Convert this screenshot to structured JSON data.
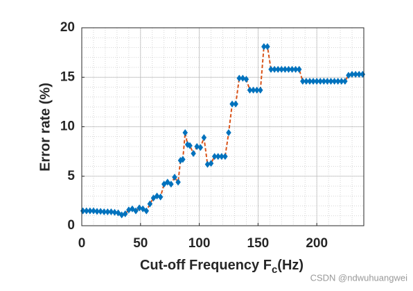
{
  "chart_data": {
    "type": "line",
    "xlabel": [
      "Cut-off Frequency F",
      "c",
      "(Hz)"
    ],
    "ylabel": "Error rate (%)",
    "watermark": "CSDN @ndwuhuangwei",
    "xlim": [
      0,
      240
    ],
    "xticks": [
      0,
      50,
      100,
      150,
      200
    ],
    "ylim": [
      0,
      20
    ],
    "yticks": [
      0,
      5,
      10,
      15,
      20
    ],
    "grid": true,
    "minor_grid": true,
    "x": [
      1,
      4,
      7,
      10,
      13,
      16,
      19,
      22,
      25,
      28,
      31,
      34,
      37,
      40,
      43,
      46,
      49,
      52,
      55,
      58,
      61,
      64,
      67,
      70,
      73,
      76,
      79,
      82,
      84,
      86,
      88,
      90,
      92,
      95,
      98,
      101,
      104,
      107,
      110,
      113,
      116,
      119,
      122,
      125,
      128,
      131,
      134,
      137,
      140,
      143,
      146,
      149,
      152,
      155,
      158,
      161,
      164,
      167,
      170,
      173,
      176,
      179,
      182,
      185,
      188,
      191,
      194,
      197,
      200,
      203,
      206,
      209,
      212,
      215,
      218,
      221,
      224,
      227,
      230,
      233,
      236,
      239
    ],
    "series": [
      {
        "name": "error",
        "color": "#0072bd",
        "line_color": "#d95319",
        "values": [
          1.5,
          1.5,
          1.5,
          1.5,
          1.45,
          1.45,
          1.4,
          1.4,
          1.4,
          1.35,
          1.3,
          1.1,
          1.2,
          1.6,
          1.7,
          1.5,
          1.8,
          1.7,
          1.5,
          2.2,
          2.8,
          3.0,
          2.9,
          4.2,
          4.4,
          4.2,
          4.9,
          4.4,
          6.6,
          6.7,
          9.4,
          8.2,
          8.1,
          7.3,
          8.0,
          7.9,
          8.9,
          6.2,
          6.3,
          7.0,
          7.0,
          7.0,
          7.0,
          9.4,
          12.3,
          12.3,
          14.9,
          14.9,
          14.8,
          13.7,
          13.7,
          13.7,
          13.7,
          18.1,
          18.1,
          15.8,
          15.8,
          15.8,
          15.8,
          15.8,
          15.8,
          15.8,
          15.8,
          15.8,
          14.6,
          14.6,
          14.6,
          14.6,
          14.6,
          14.6,
          14.6,
          14.6,
          14.6,
          14.6,
          14.6,
          14.6,
          14.6,
          15.2,
          15.3,
          15.3,
          15.3,
          15.3
        ]
      }
    ]
  }
}
